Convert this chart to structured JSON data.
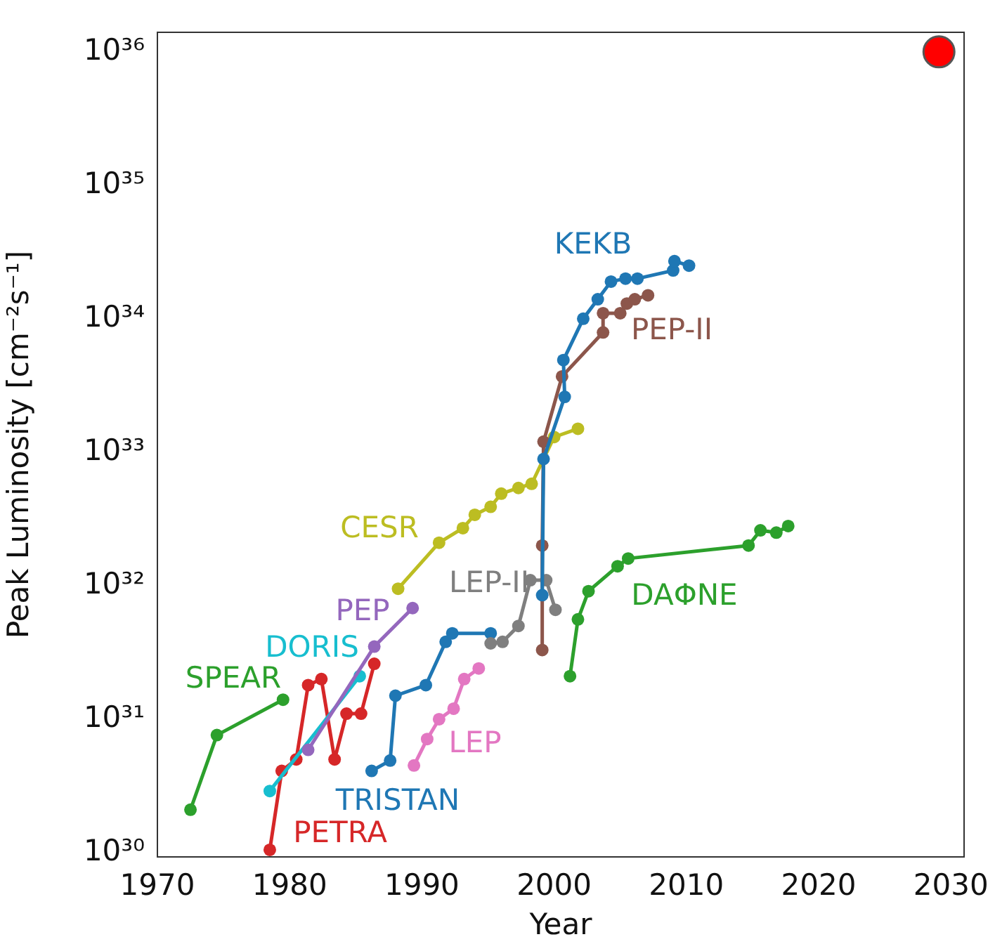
{
  "chart_data": {
    "type": "line",
    "xlabel": "Year",
    "ylabel": "Peak Luminosity [cm⁻²s⁻¹]",
    "log": "y",
    "grid": false,
    "legend": false,
    "marker": "circle",
    "line_style": "solid",
    "xlim": [
      1970,
      2031
    ],
    "xticks": [
      1970,
      1980,
      1990,
      2000,
      2010,
      2020,
      2030
    ],
    "ylim": [
      9.3e+29,
      1.4e+36
    ],
    "yticks": [
      {
        "value": 1e+30,
        "label": "10³⁰"
      },
      {
        "value": 1e+31,
        "label": "10³¹"
      },
      {
        "value": 1e+32,
        "label": "10³²"
      },
      {
        "value": 1e+33,
        "label": "10³³"
      },
      {
        "value": 1e+34,
        "label": "10³⁴"
      },
      {
        "value": 1e+35,
        "label": "10³⁵"
      },
      {
        "value": 1e+36,
        "label": "10³⁶"
      }
    ],
    "series": [
      {
        "name": "SPEAR",
        "color": "#2ca02c",
        "x": [
          1972.5,
          1974.5,
          1979.5
        ],
        "values": [
          2.1e+30,
          7.6e+30,
          1.4e+31
        ]
      },
      {
        "name": "PETRA",
        "color": "#d62728",
        "x": [
          1978.5,
          1979.4,
          1980.5,
          1981.4,
          1982.4,
          1983.4,
          1984.3,
          1985.4,
          1986.4
        ],
        "values": [
          1.05e+30,
          4.1e+30,
          5e+30,
          1.8e+31,
          2e+31,
          5e+30,
          1.1e+31,
          1.1e+31,
          2.6e+31
        ]
      },
      {
        "name": "DORIS",
        "color": "#17becf",
        "x": [
          1978.5,
          1985.3
        ],
        "values": [
          2.9e+30,
          2.1e+31
        ]
      },
      {
        "name": "PEP",
        "color": "#9467bd",
        "x": [
          1981.4,
          1986.4,
          1989.3
        ],
        "values": [
          5.9e+30,
          3.5e+31,
          6.8e+31
        ]
      },
      {
        "name": "TRISTAN",
        "color": "#1f77b4",
        "x": [
          1986.2,
          1987.6,
          1988.0,
          1990.3,
          1991.8,
          1992.3,
          1995.2
        ],
        "values": [
          4.1e+30,
          4.9e+30,
          1.5e+31,
          1.8e+31,
          3.8e+31,
          4.4e+31,
          4.4e+31
        ]
      },
      {
        "name": "LEP",
        "color": "#e377c2",
        "x": [
          1989.4,
          1990.4,
          1991.3,
          1992.4,
          1993.2,
          1994.3
        ],
        "values": [
          4.5e+30,
          7.1e+30,
          1e+31,
          1.2e+31,
          2e+31,
          2.4e+31
        ]
      },
      {
        "name": "LEP-II",
        "color": "#7f7f7f",
        "x": [
          1995.2,
          1996.1,
          1997.3,
          1998.2,
          1999.4,
          2000.1
        ],
        "values": [
          3.7e+31,
          3.8e+31,
          5e+31,
          1.1e+32,
          1.1e+32,
          6.6e+31
        ]
      },
      {
        "name": "CESR",
        "color": "#bcbd22",
        "x": [
          1988.2,
          1991.3,
          1993.1,
          1994.0,
          1995.2,
          1996.0,
          1997.3,
          1998.3,
          2000.0,
          2001.8
        ],
        "values": [
          9.5e+31,
          2.1e+32,
          2.7e+32,
          3.4e+32,
          3.9e+32,
          4.9e+32,
          5.4e+32,
          5.8e+32,
          1.3e+33,
          1.5e+33
        ]
      },
      {
        "name": "PEP-II",
        "color": "#8c564b",
        "x": [
          1999.1,
          1999.1,
          1999.2,
          2000.6,
          2003.7,
          2003.7,
          2005.0,
          2005.5,
          2006.1,
          2007.1
        ],
        "values": [
          3.3e+31,
          2e+32,
          1.2e+33,
          3.7e+33,
          7.9e+33,
          1.1e+34,
          1.1e+34,
          1.3e+34,
          1.4e+34,
          1.5e+34
        ]
      },
      {
        "name": "KEKB",
        "color": "#1f77b4",
        "x": [
          1999.1,
          1999.2,
          2000.8,
          2000.7,
          2002.2,
          2003.3,
          2004.3,
          2005.4,
          2006.3,
          2009.0,
          2009.1,
          2010.2
        ],
        "values": [
          8.5e+31,
          8.9e+32,
          2.6e+33,
          4.9e+33,
          1e+34,
          1.4e+34,
          1.9e+34,
          2e+34,
          2e+34,
          2.3e+34,
          2.7e+34,
          2.5e+34
        ]
      },
      {
        "name": "DAΦNE",
        "color": "#2ca02c",
        "x": [
          2001.2,
          2001.8,
          2002.6,
          2004.8,
          2005.6,
          2014.7,
          2015.6,
          2016.8,
          2017.7
        ],
        "values": [
          2.1e+31,
          5.6e+31,
          9.1e+31,
          1.4e+32,
          1.6e+32,
          2e+32,
          2.6e+32,
          2.5e+32,
          2.8e+32
        ]
      },
      {
        "type": "scatter",
        "color": "#ff0000",
        "x": [
          2029.1
        ],
        "values": [
          1e+36
        ]
      }
    ]
  }
}
